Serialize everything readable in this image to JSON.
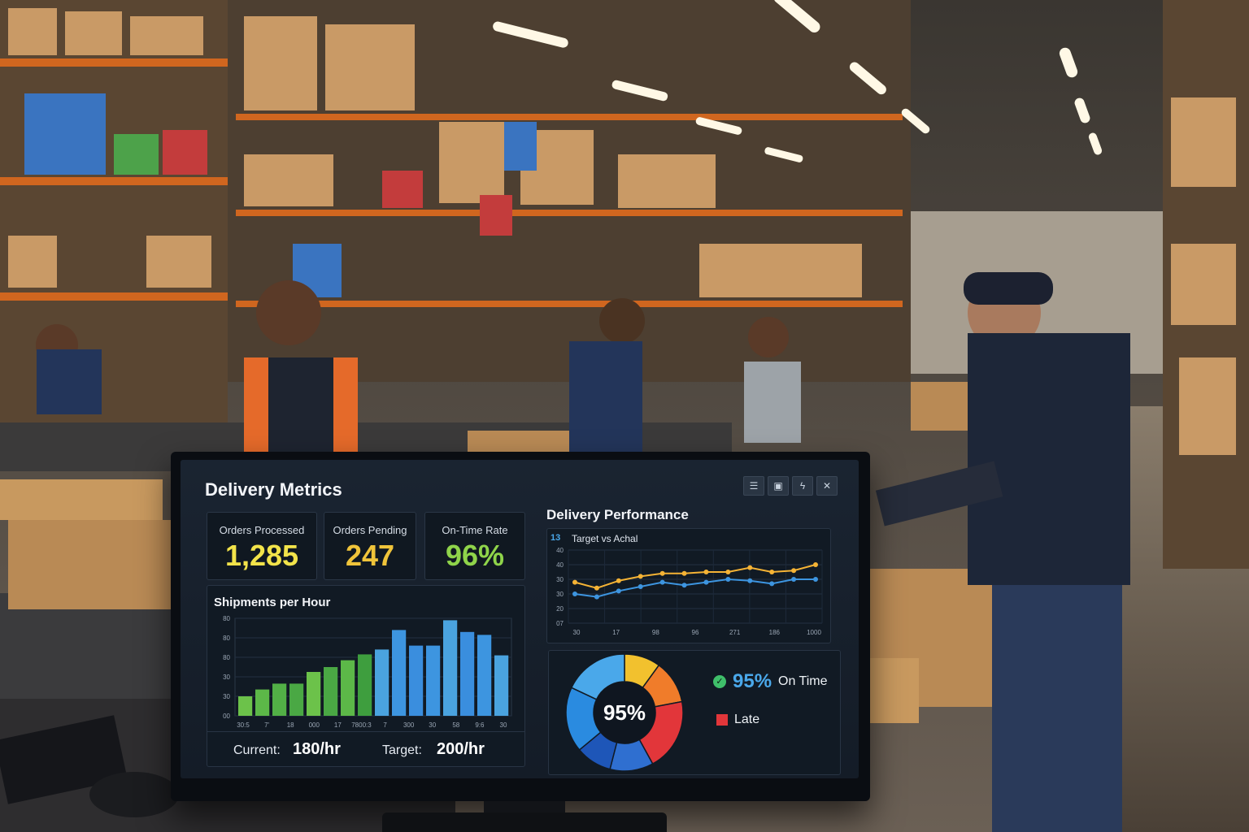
{
  "dashboard": {
    "title": "Delivery Metrics",
    "toolbar": [
      "list-icon",
      "image-icon",
      "bolt-icon",
      "close-icon"
    ],
    "kpis": [
      {
        "label": "Orders Processed",
        "value": "1,285",
        "color": "#f2e34a"
      },
      {
        "label": "Orders Pending",
        "value": "247",
        "color": "#f0c43a"
      },
      {
        "label": "On-Time Rate",
        "value": "96%",
        "color": "#8fd44a"
      }
    ],
    "shipments": {
      "title": "Shipments per Hour",
      "current_label": "Current:",
      "current_value": "180/hr",
      "target_label": "Target:",
      "target_value": "200/hr"
    },
    "performance": {
      "title": "Delivery Performance",
      "chart_label": "Target vs Achal"
    },
    "ontime": {
      "center": "95%",
      "on_time_value": "95%",
      "on_time_label": "On Time",
      "late_label": "Late"
    }
  },
  "chart_data": [
    {
      "type": "bar",
      "title": "Shipments per Hour",
      "ytick_labels": [
        "00",
        "30",
        "30",
        "80",
        "80",
        "80"
      ],
      "xtick_labels": [
        "30:5",
        "7'",
        "18",
        "000",
        "17",
        "7800:3",
        "7",
        "300",
        "30",
        "58",
        "9:6",
        "30"
      ],
      "values": [
        20,
        27,
        33,
        33,
        45,
        50,
        57,
        63,
        68,
        88,
        72,
        72,
        98,
        86,
        83,
        62
      ],
      "colors": [
        "#6cc24a",
        "#5cb848",
        "#52b046",
        "#4aa844",
        "#6cc24a",
        "#4aa844",
        "#5cb848",
        "#3e9e3e",
        "#4aa3df",
        "#3d95e0",
        "#3a8ede",
        "#3d95e0",
        "#4aa3df",
        "#3a8ede",
        "#3d95e0",
        "#4aa3df"
      ],
      "ylim": [
        0,
        100
      ]
    },
    {
      "type": "line",
      "title": "Target vs Achal",
      "ytick_labels": [
        "07",
        "20",
        "30",
        "30",
        "40",
        "40"
      ],
      "xtick_labels": [
        "30",
        "17",
        "98",
        "96",
        "271",
        "186",
        "1000"
      ],
      "ylim": [
        0,
        50
      ],
      "series": [
        {
          "color": "#f5b335",
          "values": [
            28,
            24,
            29,
            32,
            34,
            34,
            35,
            35,
            38,
            35,
            36,
            40
          ]
        },
        {
          "color": "#3d95e0",
          "values": [
            20,
            18,
            22,
            25,
            28,
            26,
            28,
            30,
            29,
            27,
            30,
            30
          ]
        }
      ]
    },
    {
      "type": "pie",
      "values": [
        10,
        12,
        20,
        12,
        10,
        18,
        18
      ],
      "colors": [
        "#f2c12e",
        "#f07c2a",
        "#e2363a",
        "#2f6fd0",
        "#1e56b8",
        "#2a8be0",
        "#4aa8ea"
      ]
    }
  ]
}
